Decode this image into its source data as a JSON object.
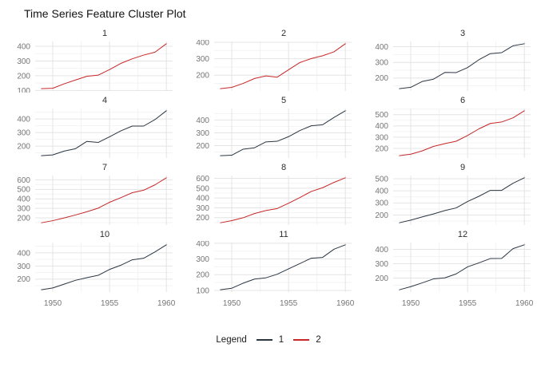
{
  "title": "Time Series Feature Cluster Plot",
  "legend": {
    "title": "Legend",
    "items": [
      {
        "label": "1",
        "color": "#2A3642"
      },
      {
        "label": "2",
        "color": "#C62728"
      }
    ]
  },
  "colors": {
    "cluster_1": "#2A3642",
    "cluster_2": "#C62728",
    "grid_major": "#E4E4E4",
    "grid_minor": "#F3F3F3",
    "axis_text": "#757575",
    "background": "#FFFFFF"
  },
  "axis": {
    "x_tick_labels": [
      "1950",
      "1955",
      "1960"
    ]
  },
  "chart_data": {
    "type": "line",
    "title": "Time Series Feature Cluster Plot",
    "x": [
      1949,
      1950,
      1951,
      1952,
      1953,
      1954,
      1955,
      1956,
      1957,
      1958,
      1959,
      1960
    ],
    "x_ticks": [
      1950,
      1955,
      1960
    ],
    "x_minor_ticks": [
      1952.5,
      1957.5
    ],
    "xlim": [
      1948.45,
      1960.55
    ],
    "grid": true,
    "legend_position": "bottom",
    "facets": [
      {
        "name": "1",
        "cluster": "2",
        "values": [
          112,
          115,
          145,
          171,
          196,
          204,
          242,
          284,
          315,
          340,
          360,
          417
        ],
        "yticks": [
          100,
          200,
          300,
          400
        ]
      },
      {
        "name": "2",
        "cluster": "2",
        "values": [
          118,
          126,
          150,
          180,
          196,
          188,
          233,
          277,
          301,
          318,
          342,
          391
        ],
        "yticks": [
          200,
          300,
          400
        ]
      },
      {
        "name": "3",
        "cluster": "1",
        "values": [
          132,
          141,
          178,
          193,
          236,
          235,
          267,
          317,
          356,
          362,
          406,
          419
        ],
        "yticks": [
          200,
          300,
          400
        ]
      },
      {
        "name": "4",
        "cluster": "1",
        "values": [
          129,
          135,
          163,
          181,
          235,
          227,
          269,
          313,
          348,
          348,
          396,
          461
        ],
        "yticks": [
          200,
          300,
          400
        ]
      },
      {
        "name": "5",
        "cluster": "1",
        "values": [
          121,
          125,
          172,
          183,
          229,
          234,
          270,
          318,
          355,
          363,
          420,
          472
        ],
        "yticks": [
          200,
          300,
          400
        ]
      },
      {
        "name": "6",
        "cluster": "2",
        "values": [
          135,
          149,
          178,
          218,
          243,
          264,
          315,
          374,
          422,
          435,
          472,
          535
        ],
        "yticks": [
          200,
          300,
          400,
          500
        ]
      },
      {
        "name": "7",
        "cluster": "2",
        "values": [
          148,
          170,
          199,
          230,
          264,
          302,
          364,
          413,
          465,
          491,
          548,
          622
        ],
        "yticks": [
          200,
          300,
          400,
          500,
          600
        ]
      },
      {
        "name": "8",
        "cluster": "2",
        "values": [
          148,
          170,
          199,
          242,
          272,
          293,
          347,
          405,
          467,
          505,
          559,
          606
        ],
        "yticks": [
          200,
          300,
          400,
          500,
          600
        ]
      },
      {
        "name": "9",
        "cluster": "1",
        "values": [
          136,
          158,
          184,
          209,
          237,
          259,
          312,
          355,
          404,
          404,
          463,
          508
        ],
        "yticks": [
          200,
          300,
          400,
          500
        ]
      },
      {
        "name": "10",
        "cluster": "1",
        "values": [
          119,
          133,
          162,
          191,
          211,
          229,
          274,
          306,
          347,
          359,
          407,
          461
        ],
        "yticks": [
          200,
          300,
          400
        ]
      },
      {
        "name": "11",
        "cluster": "1",
        "values": [
          104,
          114,
          146,
          172,
          180,
          203,
          237,
          271,
          305,
          310,
          362,
          390
        ],
        "yticks": [
          100,
          200,
          300,
          400
        ]
      },
      {
        "name": "12",
        "cluster": "1",
        "values": [
          118,
          140,
          166,
          194,
          201,
          229,
          278,
          306,
          336,
          337,
          405,
          432
        ],
        "yticks": [
          200,
          300,
          400
        ]
      }
    ]
  }
}
